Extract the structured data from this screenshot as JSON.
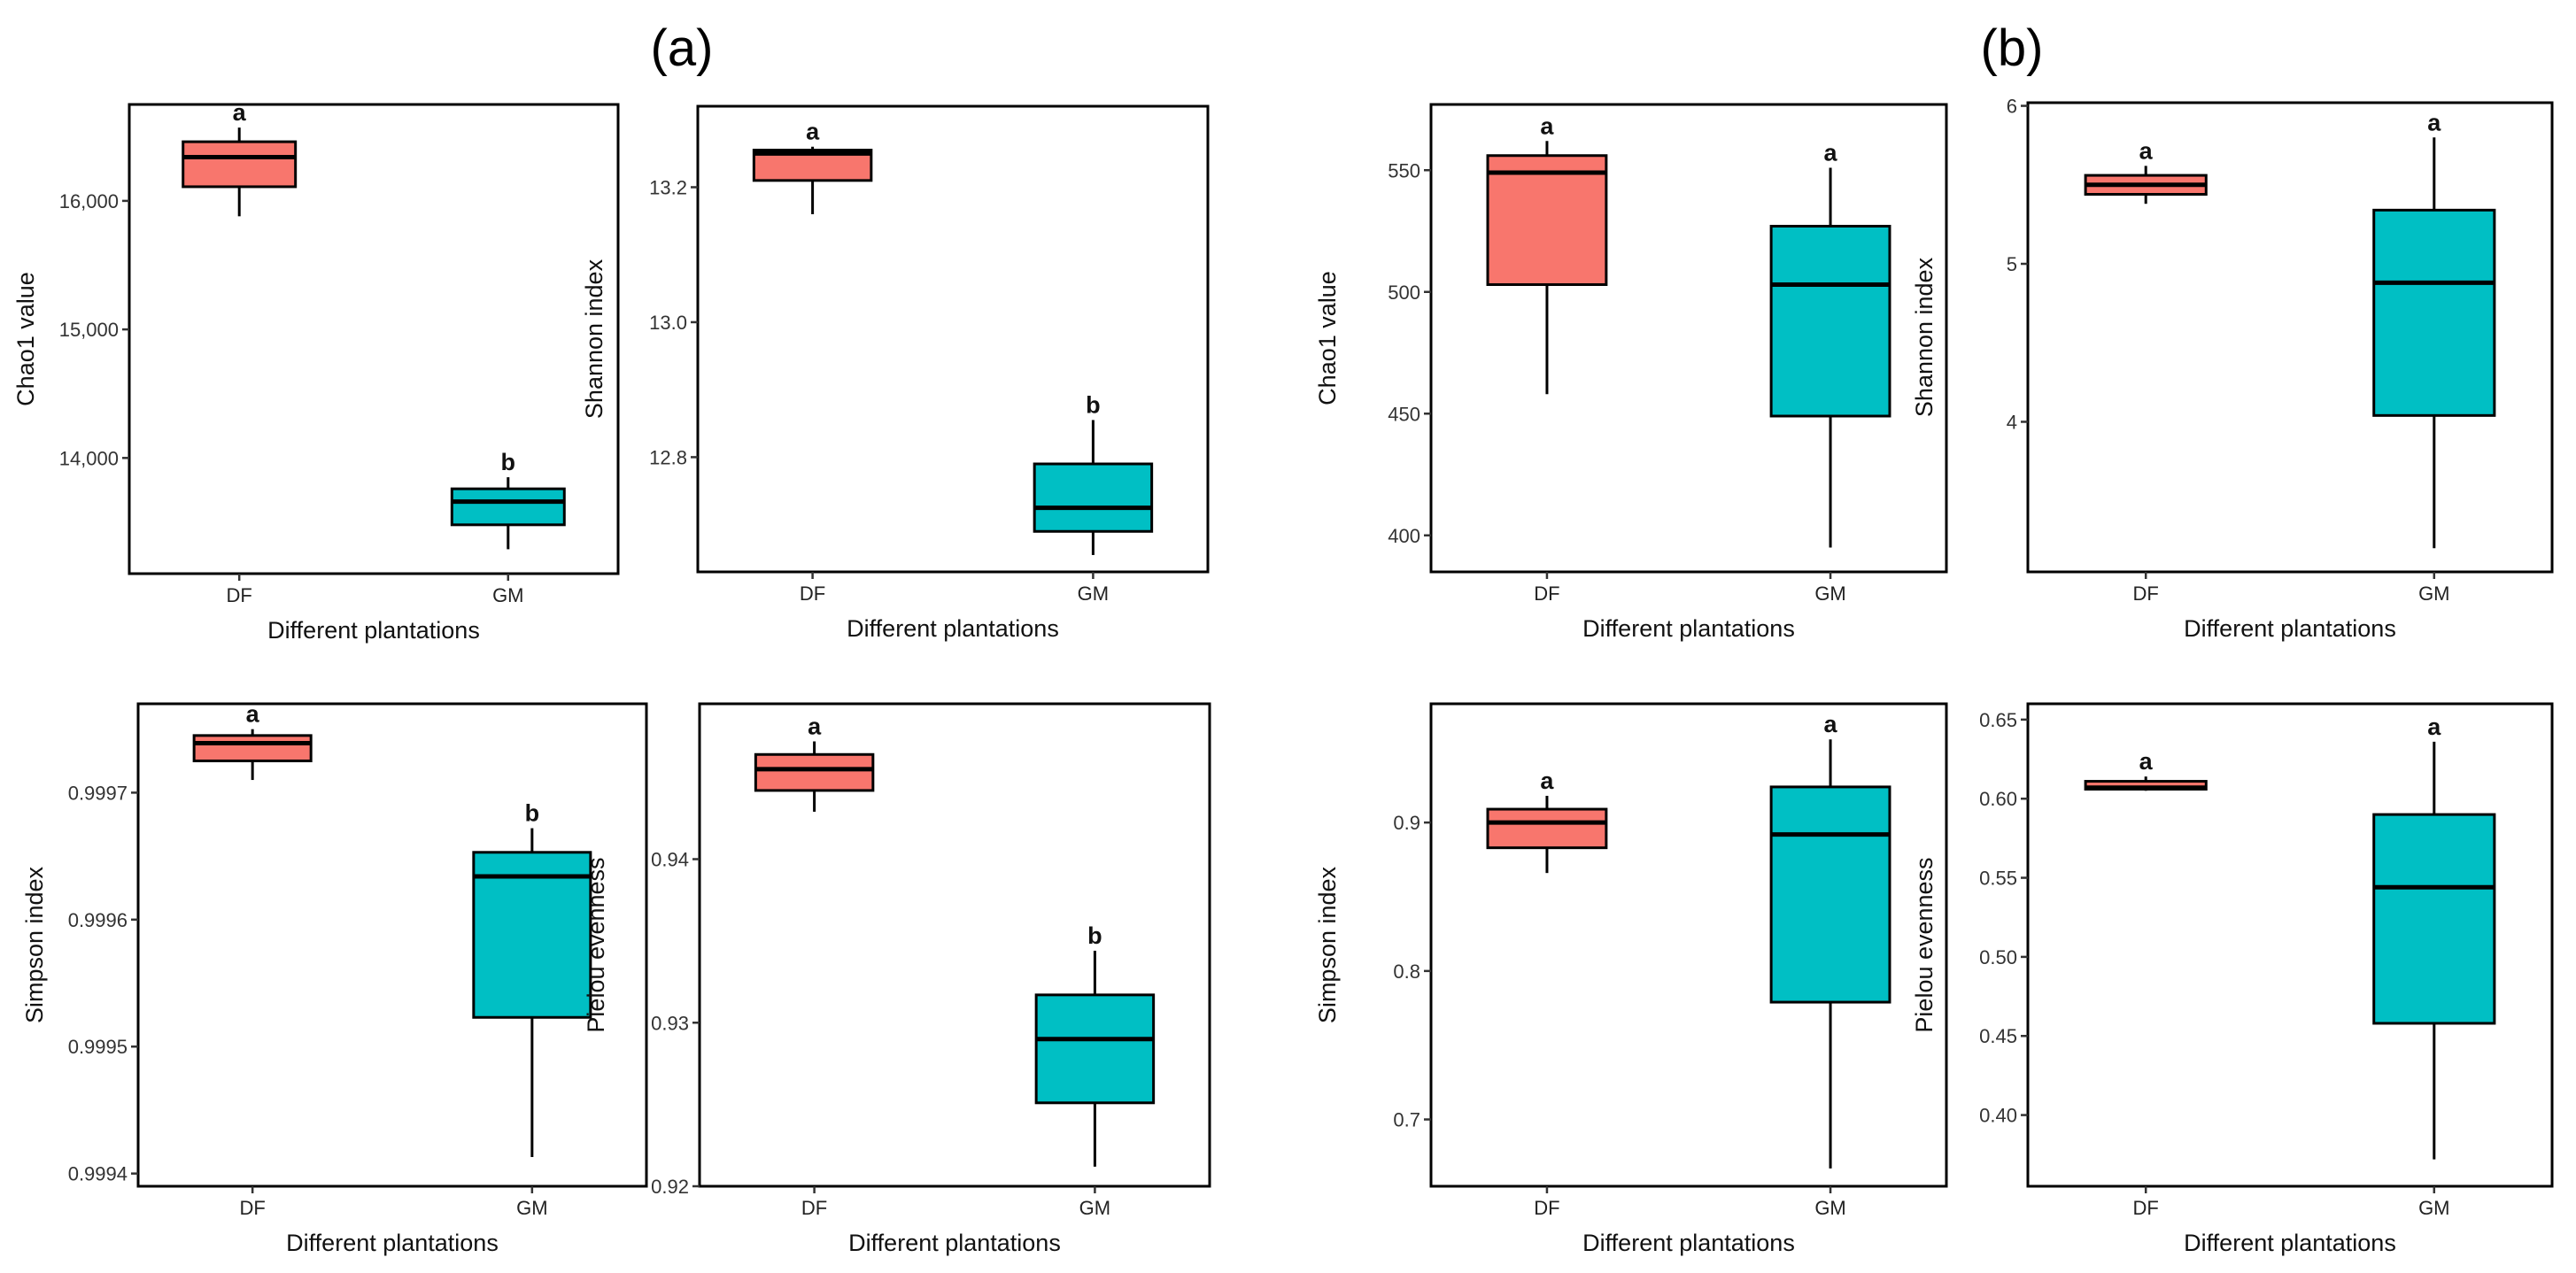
{
  "colors": {
    "DF": "#f8766d",
    "GM": "#00bfc4"
  },
  "panel_labels": [
    "(a)",
    "(b)"
  ],
  "chart_data": [
    {
      "type": "boxplot",
      "panel": "(a)",
      "ylabel": "Chao1 value",
      "xlabel": "Different plantations",
      "categories": [
        "DF",
        "GM"
      ],
      "ylim": [
        13100,
        16750
      ],
      "yticks": [
        14000,
        15000,
        16000
      ],
      "ytick_labels": [
        "14,000",
        "15,000",
        "16,000"
      ],
      "boxes": [
        {
          "group": "DF",
          "min": 15880,
          "q1": 16110,
          "median": 16340,
          "q3": 16460,
          "max": 16570,
          "letter": "a"
        },
        {
          "group": "GM",
          "min": 13290,
          "q1": 13480,
          "median": 13660,
          "q3": 13760,
          "max": 13850,
          "letter": "b"
        }
      ]
    },
    {
      "type": "boxplot",
      "panel": "(a)",
      "ylabel": "Shannon index",
      "xlabel": "Different plantations",
      "categories": [
        "DF",
        "GM"
      ],
      "ylim": [
        12.63,
        13.32
      ],
      "yticks": [
        12.8,
        13.0,
        13.2
      ],
      "ytick_labels": [
        "12.8",
        "13.0",
        "13.2"
      ],
      "boxes": [
        {
          "group": "DF",
          "min": 13.16,
          "q1": 13.21,
          "median": 13.25,
          "q3": 13.255,
          "max": 13.26,
          "letter": "a"
        },
        {
          "group": "GM",
          "min": 12.655,
          "q1": 12.69,
          "median": 12.725,
          "q3": 12.79,
          "max": 12.855,
          "letter": "b"
        }
      ]
    },
    {
      "type": "boxplot",
      "panel": "(b)",
      "ylabel": "Chao1 value",
      "xlabel": "Different plantations",
      "categories": [
        "DF",
        "GM"
      ],
      "ylim": [
        385,
        577
      ],
      "yticks": [
        400,
        450,
        500,
        550
      ],
      "ytick_labels": [
        "400",
        "450",
        "500",
        "550"
      ],
      "boxes": [
        {
          "group": "DF",
          "min": 458,
          "q1": 503,
          "median": 549,
          "q3": 556,
          "max": 562,
          "letter": "a"
        },
        {
          "group": "GM",
          "min": 395,
          "q1": 449,
          "median": 503,
          "q3": 527,
          "max": 551,
          "letter": "a"
        }
      ]
    },
    {
      "type": "boxplot",
      "panel": "(b)",
      "ylabel": "Shannon index",
      "xlabel": "Different plantations",
      "categories": [
        "DF",
        "GM"
      ],
      "ylim": [
        3.05,
        6.02
      ],
      "yticks": [
        4,
        5,
        6
      ],
      "ytick_labels": [
        "4",
        "5",
        "6"
      ],
      "boxes": [
        {
          "group": "DF",
          "min": 5.38,
          "q1": 5.44,
          "median": 5.5,
          "q3": 5.56,
          "max": 5.62,
          "letter": "a"
        },
        {
          "group": "GM",
          "min": 3.2,
          "q1": 4.04,
          "median": 4.88,
          "q3": 5.34,
          "max": 5.8,
          "letter": "a"
        }
      ]
    },
    {
      "type": "boxplot",
      "panel": "(a)",
      "ylabel": "Simpson index",
      "xlabel": "Different plantations",
      "categories": [
        "DF",
        "GM"
      ],
      "ylim": [
        0.99939,
        0.99977
      ],
      "yticks": [
        0.9994,
        0.9995,
        0.9996,
        0.9997
      ],
      "ytick_labels": [
        "0.9994",
        "0.9995",
        "0.9996",
        "0.9997"
      ],
      "boxes": [
        {
          "group": "DF",
          "min": 0.99971,
          "q1": 0.999725,
          "median": 0.999739,
          "q3": 0.999745,
          "max": 0.99975,
          "letter": "a"
        },
        {
          "group": "GM",
          "min": 0.999413,
          "q1": 0.999523,
          "median": 0.999634,
          "q3": 0.999653,
          "max": 0.999672,
          "letter": "b"
        }
      ]
    },
    {
      "type": "boxplot",
      "panel": "(a)",
      "ylabel": "Pielou evenness",
      "xlabel": "Different plantations",
      "categories": [
        "DF",
        "GM"
      ],
      "ylim": [
        0.92,
        0.9495
      ],
      "yticks": [
        0.92,
        0.93,
        0.94
      ],
      "ytick_labels": [
        "0.92",
        "0.93",
        "0.94"
      ],
      "boxes": [
        {
          "group": "DF",
          "min": 0.9429,
          "q1": 0.9442,
          "median": 0.9455,
          "q3": 0.9464,
          "max": 0.9472,
          "letter": "a"
        },
        {
          "group": "GM",
          "min": 0.9212,
          "q1": 0.9251,
          "median": 0.929,
          "q3": 0.9317,
          "max": 0.9344,
          "letter": "b"
        }
      ]
    },
    {
      "type": "boxplot",
      "panel": "(b)",
      "ylabel": "Simpson index",
      "xlabel": "Different plantations",
      "categories": [
        "DF",
        "GM"
      ],
      "ylim": [
        0.655,
        0.98
      ],
      "yticks": [
        0.7,
        0.8,
        0.9
      ],
      "ytick_labels": [
        "0.7",
        "0.8",
        "0.9"
      ],
      "boxes": [
        {
          "group": "DF",
          "min": 0.866,
          "q1": 0.883,
          "median": 0.9,
          "q3": 0.909,
          "max": 0.918,
          "letter": "a"
        },
        {
          "group": "GM",
          "min": 0.667,
          "q1": 0.779,
          "median": 0.892,
          "q3": 0.924,
          "max": 0.956,
          "letter": "a"
        }
      ]
    },
    {
      "type": "boxplot",
      "panel": "(b)",
      "ylabel": "Pielou evenness",
      "xlabel": "Different plantations",
      "categories": [
        "DF",
        "GM"
      ],
      "ylim": [
        0.355,
        0.66
      ],
      "yticks": [
        0.4,
        0.45,
        0.5,
        0.55,
        0.6,
        0.65
      ],
      "ytick_labels": [
        "0.40",
        "0.45",
        "0.50",
        "0.55",
        "0.60",
        "0.65"
      ],
      "boxes": [
        {
          "group": "DF",
          "min": 0.605,
          "q1": 0.606,
          "median": 0.607,
          "q3": 0.611,
          "max": 0.614,
          "letter": "a"
        },
        {
          "group": "GM",
          "min": 0.372,
          "q1": 0.458,
          "median": 0.544,
          "q3": 0.59,
          "max": 0.636,
          "letter": "a"
        }
      ]
    }
  ]
}
